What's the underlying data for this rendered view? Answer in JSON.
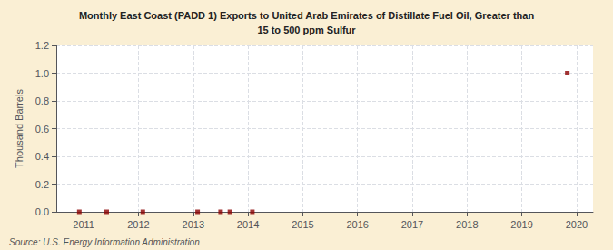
{
  "chart_data": {
    "type": "scatter",
    "title": "Monthly East Coast (PADD 1) Exports to United Arab Emirates of Distillate Fuel Oil, Greater than",
    "subtitle": "15 to 500 ppm Sulfur",
    "ylabel": "Thousand Barrels",
    "source": "Source: U.S. Energy Information Administration",
    "x": [
      2010.92,
      2011.42,
      2012.08,
      2013.08,
      2013.5,
      2013.67,
      2014.08,
      2019.83
    ],
    "values": [
      0.0,
      0.0,
      0.0,
      0.0,
      0.0,
      0.0,
      0.0,
      1.0
    ],
    "color": "#8b0000",
    "marker": "square",
    "xlim": [
      2010.5,
      2020.3
    ],
    "xticks": [
      2011,
      2012,
      2013,
      2014,
      2015,
      2016,
      2017,
      2018,
      2019,
      2020
    ],
    "ylim": [
      0.0,
      1.2
    ],
    "yticks": [
      {
        "value": 0.0,
        "label": "0.0"
      },
      0.2,
      0.4,
      0.6,
      0.8,
      {
        "value": 1.0,
        "label": "1.0"
      },
      1.2
    ],
    "grid": true
  }
}
